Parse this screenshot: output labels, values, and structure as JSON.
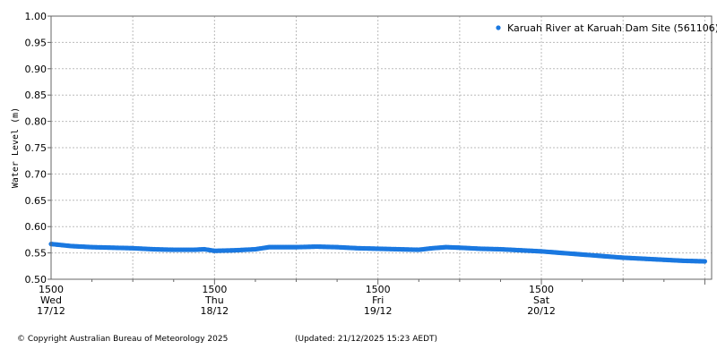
{
  "chart_data": {
    "type": "scatter",
    "title": "",
    "xlabel": "",
    "ylabel": "Water Level (m)",
    "ylim": [
      0.5,
      1.0
    ],
    "xlim": [
      0,
      97
    ],
    "y_ticks": [
      "0.50",
      "0.55",
      "0.60",
      "0.65",
      "0.70",
      "0.75",
      "0.80",
      "0.85",
      "0.90",
      "0.95",
      "1.00"
    ],
    "x_ticks": [
      {
        "hours": 0,
        "time": "1500",
        "day": "Wed",
        "date": "17/12"
      },
      {
        "hours": 24,
        "time": "1500",
        "day": "Thu",
        "date": "18/12"
      },
      {
        "hours": 48,
        "time": "1500",
        "day": "Fri",
        "date": "19/12"
      },
      {
        "hours": 72,
        "time": "1500",
        "day": "Sat",
        "date": "20/12"
      }
    ],
    "grid": true,
    "legend": {
      "position": "top-right"
    },
    "series": [
      {
        "name": "Karuah River at Karuah Dam Site (561106)",
        "color": "#1a78e0",
        "x": [
          0,
          3,
          6,
          9,
          12,
          15,
          18,
          21,
          22.5,
          24,
          27,
          30,
          32,
          34,
          36,
          39,
          42,
          45,
          48,
          51,
          54,
          56,
          58,
          60,
          63,
          66,
          69,
          72,
          75,
          78,
          81,
          84,
          87,
          90,
          93,
          96
        ],
        "y": [
          0.567,
          0.563,
          0.561,
          0.56,
          0.559,
          0.557,
          0.556,
          0.556,
          0.557,
          0.554,
          0.555,
          0.557,
          0.561,
          0.561,
          0.561,
          0.562,
          0.561,
          0.559,
          0.558,
          0.557,
          0.556,
          0.559,
          0.561,
          0.56,
          0.558,
          0.557,
          0.555,
          0.553,
          0.55,
          0.547,
          0.544,
          0.541,
          0.539,
          0.537,
          0.535,
          0.534
        ]
      }
    ]
  },
  "footer": {
    "copyright": "© Copyright Australian Bureau of Meteorology 2025",
    "updated": "(Updated: 21/12/2025 15:23 AEDT)"
  }
}
